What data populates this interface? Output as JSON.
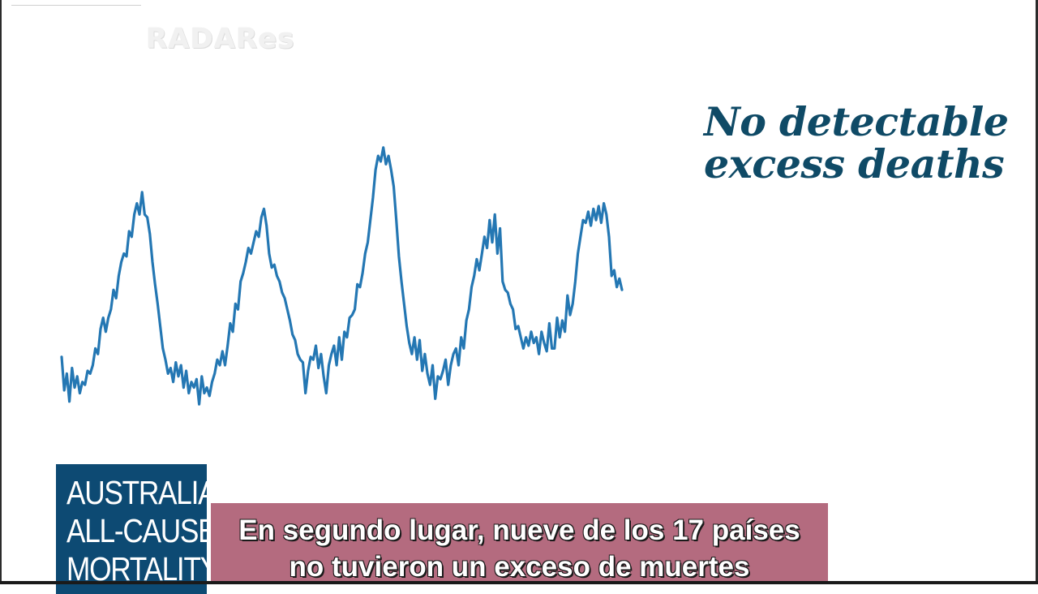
{
  "watermark": "RADARes",
  "headline": {
    "line1": "No detectable",
    "line2": "excess deaths"
  },
  "badge": {
    "line1": "AUSTRALIA",
    "line2": "ALL-CAUSE",
    "line3": "MORTALITY"
  },
  "subtitle": {
    "line1": "En segundo lugar, nueve de los 17 países",
    "line2": "no tuvieron un exceso de muertes"
  },
  "colors": {
    "series": "#2477b3",
    "headline": "#0f4a66",
    "badge_bg": "#0d4a73",
    "subtitle_bg": "#b46b7f"
  },
  "chart_data": {
    "type": "line",
    "title": "",
    "xlabel": "",
    "ylabel": "",
    "axes_visible": false,
    "grid": false,
    "x_unit": "week index",
    "y_unit": "relative mortality level (axis not shown)",
    "ylim": [
      0,
      100
    ],
    "series": [
      {
        "values": [
          21,
          9,
          15,
          5,
          17,
          10,
          14,
          8,
          12,
          11,
          16,
          15,
          18,
          24,
          22,
          31,
          35,
          30,
          35,
          38,
          45,
          42,
          50,
          55,
          58,
          57,
          66,
          64,
          72,
          76,
          72,
          80,
          72,
          71,
          65,
          55,
          47,
          40,
          32,
          24,
          20,
          15,
          17,
          12,
          19,
          14,
          18,
          10,
          16,
          8,
          12,
          10,
          13,
          4,
          14,
          8,
          10,
          7,
          12,
          15,
          20,
          18,
          23,
          18,
          25,
          33,
          30,
          40,
          38,
          48,
          51,
          55,
          60,
          58,
          62,
          66,
          64,
          71,
          74,
          68,
          58,
          53,
          54,
          50,
          48,
          44,
          42,
          38,
          34,
          29,
          27,
          22,
          20,
          19,
          8,
          16,
          21,
          20,
          25,
          17,
          22,
          14,
          8,
          18,
          22,
          25,
          18,
          28,
          20,
          30,
          28,
          35,
          36,
          38,
          47,
          46,
          51,
          58,
          62,
          70,
          78,
          88,
          93,
          91,
          96,
          90,
          93,
          88,
          82,
          70,
          57,
          48,
          40,
          32,
          26,
          22,
          28,
          20,
          27,
          16,
          22,
          15,
          11,
          18,
          6,
          14,
          13,
          16,
          20,
          11,
          18,
          22,
          24,
          18,
          28,
          24,
          34,
          38,
          46,
          50,
          56,
          52,
          58,
          64,
          60,
          70,
          62,
          72,
          58,
          67,
          48,
          45,
          44,
          40,
          38,
          31,
          32,
          28,
          24,
          28,
          25,
          30,
          26,
          28,
          22,
          30,
          26,
          23,
          33,
          24,
          24,
          35,
          28,
          34,
          30,
          43,
          36,
          40,
          48,
          58,
          64,
          70,
          69,
          73,
          68,
          74,
          70,
          75,
          69,
          76,
          72,
          64,
          50,
          52,
          46,
          49,
          45
        ]
      }
    ]
  }
}
